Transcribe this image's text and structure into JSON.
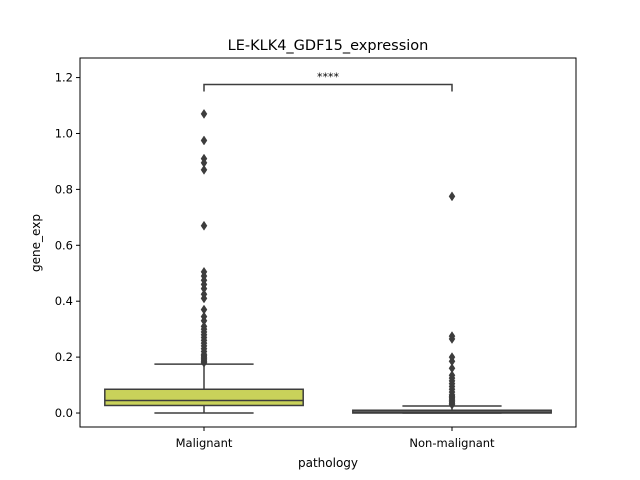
{
  "chart_data": {
    "type": "box",
    "title": "LE-KLK4_GDF15_expression",
    "xlabel": "pathology",
    "ylabel": "gene_exp",
    "ylim": [
      -0.05,
      1.27
    ],
    "yticks": [
      0.0,
      0.2,
      0.4,
      0.6,
      0.8,
      1.0,
      1.2
    ],
    "ytick_labels": [
      "0.0",
      "0.2",
      "0.4",
      "0.6",
      "0.8",
      "1.0",
      "1.2"
    ],
    "grid": false,
    "categories": [
      "Malignant",
      "Non-malignant"
    ],
    "boxes": [
      {
        "category": "Malignant",
        "color": "#c9d25a",
        "whisker_low": 0.0,
        "q1": 0.027,
        "median": 0.045,
        "q3": 0.085,
        "whisker_high": 0.175,
        "outliers": [
          1.07,
          0.975,
          0.91,
          0.895,
          0.87,
          0.67,
          0.505,
          0.49,
          0.475,
          0.46,
          0.445,
          0.425,
          0.41,
          0.37,
          0.345,
          0.33,
          0.31,
          0.3,
          0.29,
          0.28,
          0.27,
          0.26,
          0.25,
          0.24,
          0.23,
          0.22,
          0.21,
          0.205,
          0.2,
          0.195,
          0.19,
          0.185,
          0.18
        ]
      },
      {
        "category": "Non-malignant",
        "color": "#8a8a8a",
        "whisker_low": 0.0,
        "q1": 0.0,
        "median": 0.003,
        "q3": 0.01,
        "whisker_high": 0.025,
        "outliers": [
          0.775,
          0.275,
          0.265,
          0.2,
          0.185,
          0.16,
          0.135,
          0.125,
          0.115,
          0.105,
          0.095,
          0.085,
          0.075,
          0.065,
          0.06,
          0.055,
          0.05,
          0.045,
          0.04,
          0.035,
          0.03
        ]
      }
    ],
    "significance": {
      "from": "Malignant",
      "to": "Non-malignant",
      "y": 1.175,
      "label": "****"
    }
  }
}
